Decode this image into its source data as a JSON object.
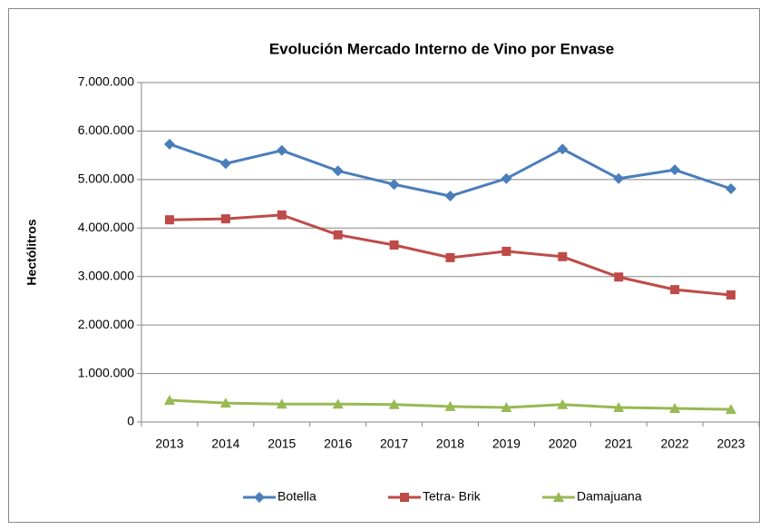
{
  "chart_data": {
    "type": "line",
    "title": "Evolución Mercado Interno de Vino por Envase",
    "y_axis_label": "Hectólitros",
    "categories": [
      "2013",
      "2014",
      "2015",
      "2016",
      "2017",
      "2018",
      "2019",
      "2020",
      "2021",
      "2022",
      "2023"
    ],
    "series": [
      {
        "name": "Botella",
        "color": "#4a7ebb",
        "marker": "diamond",
        "values": [
          5730000,
          5330000,
          5600000,
          5180000,
          4900000,
          4660000,
          5020000,
          5630000,
          5020000,
          5200000,
          4810000
        ]
      },
      {
        "name": "Tetra- Brik",
        "color": "#be4b48",
        "marker": "square",
        "values": [
          4170000,
          4190000,
          4270000,
          3860000,
          3650000,
          3390000,
          3520000,
          3410000,
          2990000,
          2730000,
          2620000
        ]
      },
      {
        "name": "Damajuana",
        "color": "#98b954",
        "marker": "triangle",
        "values": [
          450000,
          390000,
          370000,
          370000,
          360000,
          320000,
          300000,
          360000,
          300000,
          280000,
          260000
        ]
      }
    ],
    "ylim": [
      0,
      7000000
    ],
    "yticks": [
      0,
      {
        "value": 1000000,
        "label": "1.000.000"
      },
      {
        "value": 2000000,
        "label": "2.000.000"
      },
      {
        "value": 3000000,
        "label": "3.000.000"
      },
      {
        "value": 4000000,
        "label": "4.000.000"
      },
      {
        "value": 5000000,
        "label": "5.000.000"
      },
      {
        "value": 6000000,
        "label": "6.000.000"
      },
      {
        "value": 7000000,
        "label": "7.000.000"
      }
    ],
    "grid": true,
    "legend": "bottom"
  }
}
